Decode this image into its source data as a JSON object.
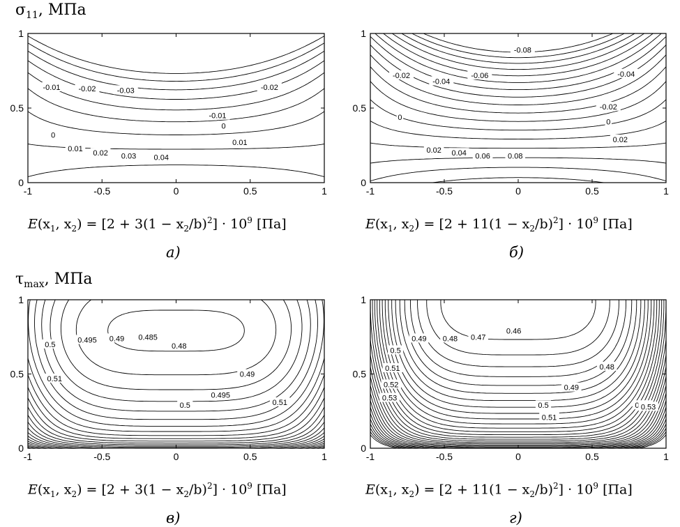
{
  "row_titles": {
    "top": {
      "symbol": "σ",
      "sub": "11",
      "unit": ", МПа"
    },
    "bottom": {
      "symbol": "τ",
      "sub": "max",
      "unit": ", МПа"
    }
  },
  "formulas": {
    "a": {
      "lhs": "E",
      "args": "(x",
      "s1": "1",
      "mid": ", x",
      "s2": "2",
      "body1": ") = [2 + 3(1 − x",
      "s3": "2",
      "body2": "/b)",
      "p2": "2",
      "body3": "] · 10",
      "p9": "9",
      "unit": " [Па]"
    },
    "b": {
      "lhs": "E",
      "args": "(x",
      "s1": "1",
      "mid": ", x",
      "s2": "2",
      "body1": ") = [2 + 11(1 − x",
      "s3": "2",
      "body2": "/b)",
      "p2": "2",
      "body3": "] · 10",
      "p9": "9",
      "unit": " [Па]"
    },
    "c": {
      "lhs": "E",
      "args": "(x",
      "s1": "1",
      "mid": ", x",
      "s2": "2",
      "body1": ") = [2 + 3(1 − x",
      "s3": "2",
      "body2": "/b)",
      "p2": "2",
      "body3": "] · 10",
      "p9": "9",
      "unit": " [Па]"
    },
    "d": {
      "lhs": "E",
      "args": "(x",
      "s1": "1",
      "mid": ", x",
      "s2": "2",
      "body1": ") = [2 + 11(1 − x",
      "s3": "2",
      "body2": "/b)",
      "p2": "2",
      "body3": "] · 10",
      "p9": "9",
      "unit": " [Па]"
    }
  },
  "panel_letters": {
    "a": "а)",
    "b": "б)",
    "c": "в)",
    "d": "г)"
  },
  "chart_data": [
    {
      "type": "contour",
      "panel": "а)",
      "xlim": [
        -1,
        1
      ],
      "ylim": [
        0,
        1
      ],
      "xticks": [
        "-1",
        "-0.5",
        "0",
        "0.5",
        "1"
      ],
      "yticks": [
        "0",
        "0.5",
        "1"
      ],
      "contour_labels": [
        {
          "text": "-0.01",
          "x": -0.84,
          "y": 0.64
        },
        {
          "text": "-0.02",
          "x": -0.6,
          "y": 0.63
        },
        {
          "text": "-0.03",
          "x": -0.34,
          "y": 0.62
        },
        {
          "text": "-0.02",
          "x": 0.63,
          "y": 0.64
        },
        {
          "text": "-0.01",
          "x": 0.28,
          "y": 0.45
        },
        {
          "text": "0",
          "x": -0.83,
          "y": 0.32
        },
        {
          "text": "0",
          "x": 0.32,
          "y": 0.38
        },
        {
          "text": "0.01",
          "x": -0.68,
          "y": 0.23
        },
        {
          "text": "0.01",
          "x": 0.43,
          "y": 0.27
        },
        {
          "text": "0.02",
          "x": -0.51,
          "y": 0.2
        },
        {
          "text": "0.03",
          "x": -0.32,
          "y": 0.18
        },
        {
          "text": "0.04",
          "x": -0.1,
          "y": 0.17
        }
      ]
    },
    {
      "type": "contour",
      "panel": "б)",
      "xlim": [
        -1,
        1
      ],
      "ylim": [
        0,
        1
      ],
      "xticks": [
        "-1",
        "-0.5",
        "0",
        "0.5",
        "1"
      ],
      "yticks": [
        "0",
        "0.5",
        "1"
      ],
      "contour_labels": [
        {
          "text": "-0.02",
          "x": -0.79,
          "y": 0.72
        },
        {
          "text": "-0.04",
          "x": -0.52,
          "y": 0.68
        },
        {
          "text": "-0.06",
          "x": -0.26,
          "y": 0.72
        },
        {
          "text": "-0.08",
          "x": 0.03,
          "y": 0.89
        },
        {
          "text": "-0.04",
          "x": 0.73,
          "y": 0.73
        },
        {
          "text": "-0.02",
          "x": 0.61,
          "y": 0.51
        },
        {
          "text": "0",
          "x": -0.8,
          "y": 0.44
        },
        {
          "text": "0",
          "x": 0.61,
          "y": 0.41
        },
        {
          "text": "0.02",
          "x": -0.57,
          "y": 0.22
        },
        {
          "text": "0.02",
          "x": 0.69,
          "y": 0.29
        },
        {
          "text": "0.04",
          "x": -0.4,
          "y": 0.2
        },
        {
          "text": "0.06",
          "x": -0.24,
          "y": 0.18
        },
        {
          "text": "0.08",
          "x": -0.02,
          "y": 0.18
        }
      ]
    },
    {
      "type": "contour",
      "panel": "в)",
      "xlim": [
        -1,
        1
      ],
      "ylim": [
        0,
        1
      ],
      "xticks": [
        "-1",
        "-0.5",
        "0",
        "0.5",
        "1"
      ],
      "yticks": [
        "0",
        "0.5",
        "1"
      ],
      "contour_labels": [
        {
          "text": "0.495",
          "x": -0.6,
          "y": 0.73
        },
        {
          "text": "0.49",
          "x": -0.4,
          "y": 0.74
        },
        {
          "text": "0.485",
          "x": -0.19,
          "y": 0.75
        },
        {
          "text": "0.48",
          "x": 0.02,
          "y": 0.69
        },
        {
          "text": "0.5",
          "x": -0.85,
          "y": 0.7
        },
        {
          "text": "0.51",
          "x": -0.82,
          "y": 0.47
        },
        {
          "text": "0.49",
          "x": 0.48,
          "y": 0.5
        },
        {
          "text": "0.495",
          "x": 0.3,
          "y": 0.36
        },
        {
          "text": "0.5",
          "x": 0.06,
          "y": 0.29
        },
        {
          "text": "0.51",
          "x": 0.7,
          "y": 0.31
        }
      ]
    },
    {
      "type": "contour",
      "panel": "г)",
      "xlim": [
        -1,
        1
      ],
      "ylim": [
        0,
        1
      ],
      "xticks": [
        "-1",
        "-0.5",
        "0",
        "0.5",
        "1"
      ],
      "yticks": [
        "0",
        "0.5",
        "1"
      ],
      "contour_labels": [
        {
          "text": "0.49",
          "x": -0.67,
          "y": 0.74
        },
        {
          "text": "0.48",
          "x": -0.46,
          "y": 0.74
        },
        {
          "text": "0.47",
          "x": -0.27,
          "y": 0.75
        },
        {
          "text": "0.46",
          "x": -0.03,
          "y": 0.79
        },
        {
          "text": "0.5",
          "x": -0.83,
          "y": 0.66
        },
        {
          "text": "0.51",
          "x": -0.85,
          "y": 0.54
        },
        {
          "text": "0.52",
          "x": -0.86,
          "y": 0.43
        },
        {
          "text": "0.53",
          "x": -0.87,
          "y": 0.34
        },
        {
          "text": "0.48",
          "x": 0.6,
          "y": 0.55
        },
        {
          "text": "0.49",
          "x": 0.36,
          "y": 0.41
        },
        {
          "text": "0.5",
          "x": 0.17,
          "y": 0.29
        },
        {
          "text": "0.51",
          "x": 0.21,
          "y": 0.21
        },
        {
          "text": "0.52",
          "x": 0.84,
          "y": 0.29
        },
        {
          "text": "0.53",
          "x": 0.88,
          "y": 0.28
        }
      ]
    }
  ]
}
